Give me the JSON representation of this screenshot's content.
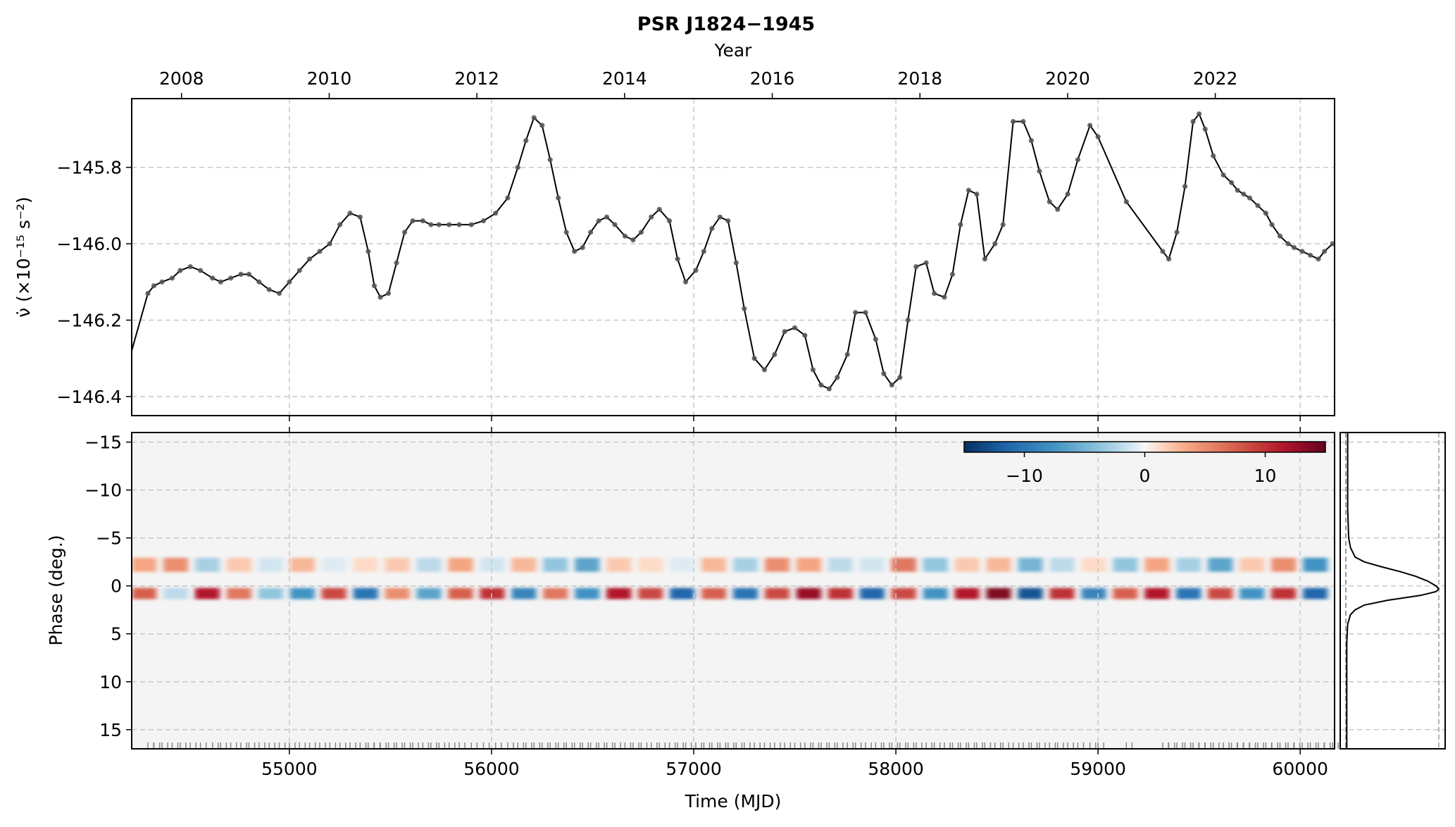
{
  "title": "PSR J1824−1945",
  "chart_data": [
    {
      "type": "line",
      "panel": "spin-down",
      "title": "PSR J1824−1945",
      "xlabel": "",
      "ylabel": "ν̇ (×10⁻¹⁵ s⁻²)",
      "top_axis_label": "Year",
      "top_axis_ticks": [
        "2008",
        "2010",
        "2012",
        "2014",
        "2016",
        "2018",
        "2020",
        "2022"
      ],
      "yticks": [
        "−145.8",
        "−146.0",
        "−146.2",
        "−146.4"
      ],
      "xlim": [
        54220,
        60170
      ],
      "ylim": [
        -146.45,
        -145.62
      ],
      "grid": true,
      "series": [
        {
          "x": [
            54220,
            54300,
            54330,
            54370,
            54420,
            54460,
            54510,
            54560,
            54620,
            54660,
            54710,
            54760,
            54800,
            54850,
            54900,
            54950,
            55000,
            55050,
            55100,
            55150,
            55200,
            55250,
            55300,
            55350,
            55390,
            55420,
            55450,
            55490,
            55530,
            55570,
            55610,
            55660,
            55700,
            55740,
            55790,
            55840,
            55900,
            55960,
            56020,
            56080,
            56130,
            56170,
            56210,
            56250,
            56290,
            56330,
            56370,
            56410,
            56450,
            56490,
            56530,
            56570,
            56610,
            56660,
            56700,
            56740,
            56790,
            56830,
            56880,
            56920,
            56960,
            57010,
            57050,
            57090,
            57130,
            57170,
            57210,
            57250,
            57300,
            57350,
            57400,
            57450,
            57500,
            57550,
            57590,
            57630,
            57670,
            57710,
            57760,
            57800,
            57850,
            57900,
            57940,
            57980,
            58020,
            58060,
            58100,
            58150,
            58190,
            58240,
            58280,
            58320,
            58360,
            58400,
            58440,
            58490,
            58530,
            58580,
            58630,
            58670,
            58710,
            58760,
            58800,
            58850,
            58900,
            58960,
            59000,
            59140,
            59320,
            59350,
            59390,
            59430,
            59470,
            59500,
            59530,
            59570,
            59620,
            59660,
            59690,
            59720,
            59750,
            59790,
            59830,
            59860,
            59900,
            59940,
            59970,
            60010,
            60050,
            60090,
            60120,
            60160
          ],
          "values": [
            -146.28,
            -146.13,
            -146.11,
            -146.1,
            -146.09,
            -146.07,
            -146.06,
            -146.07,
            -146.09,
            -146.1,
            -146.09,
            -146.08,
            -146.08,
            -146.1,
            -146.12,
            -146.13,
            -146.1,
            -146.07,
            -146.04,
            -146.02,
            -146.0,
            -145.95,
            -145.92,
            -145.93,
            -146.02,
            -146.11,
            -146.14,
            -146.13,
            -146.05,
            -145.97,
            -145.94,
            -145.94,
            -145.95,
            -145.95,
            -145.95,
            -145.95,
            -145.95,
            -145.94,
            -145.92,
            -145.88,
            -145.8,
            -145.73,
            -145.67,
            -145.69,
            -145.78,
            -145.88,
            -145.97,
            -146.02,
            -146.01,
            -145.97,
            -145.94,
            -145.93,
            -145.95,
            -145.98,
            -145.99,
            -145.97,
            -145.93,
            -145.91,
            -145.94,
            -146.04,
            -146.1,
            -146.07,
            -146.02,
            -145.96,
            -145.93,
            -145.94,
            -146.05,
            -146.17,
            -146.3,
            -146.33,
            -146.29,
            -146.23,
            -146.22,
            -146.24,
            -146.33,
            -146.37,
            -146.38,
            -146.35,
            -146.29,
            -146.18,
            -146.18,
            -146.25,
            -146.34,
            -146.37,
            -146.35,
            -146.2,
            -146.06,
            -146.05,
            -146.13,
            -146.14,
            -146.08,
            -145.95,
            -145.86,
            -145.87,
            -146.04,
            -146.0,
            -145.95,
            -145.68,
            -145.68,
            -145.73,
            -145.81,
            -145.89,
            -145.91,
            -145.87,
            -145.78,
            -145.69,
            -145.72,
            -145.89,
            -146.02,
            -146.04,
            -145.97,
            -145.85,
            -145.68,
            -145.66,
            -145.7,
            -145.77,
            -145.82,
            -145.84,
            -145.86,
            -145.87,
            -145.88,
            -145.9,
            -145.92,
            -145.95,
            -145.98,
            -146.0,
            -146.01,
            -146.02,
            -146.03,
            -146.04,
            -146.02,
            -146.0
          ]
        }
      ]
    },
    {
      "type": "heatmap",
      "panel": "profile-residuals",
      "xlabel": "Time (MJD)",
      "ylabel": "Phase (deg.)",
      "xticks": [
        "55000",
        "56000",
        "57000",
        "58000",
        "59000",
        "60000"
      ],
      "yticks": [
        "−15",
        "−10",
        "−5",
        "0",
        "5",
        "10",
        "15"
      ],
      "xlim": [
        54220,
        60170
      ],
      "ylim": [
        17,
        -16
      ],
      "grid": true,
      "colormap": "RdBu_r",
      "colorbar": {
        "ticks": [
          "−10",
          "0",
          "10"
        ],
        "range": [
          -15,
          15
        ],
        "placement": "top-right"
      },
      "bands": [
        {
          "phase": -2.2,
          "values": [
            6,
            7,
            -5,
            4,
            -3,
            5,
            -2,
            3,
            4,
            -4,
            6,
            -3,
            5,
            -6,
            -8,
            4,
            3,
            -2,
            5,
            -5,
            7,
            6,
            -4,
            -3,
            8,
            -6,
            4,
            5,
            -7,
            -4,
            3,
            -6,
            6,
            -5,
            -8,
            4,
            7,
            -9
          ]
        },
        {
          "phase": 0.8,
          "values": [
            9,
            -4,
            12,
            8,
            -6,
            -9,
            10,
            -11,
            7,
            -8,
            9,
            11,
            -10,
            8,
            -9,
            12,
            10,
            -12,
            9,
            -11,
            10,
            13,
            11,
            -12,
            10,
            -9,
            12,
            14,
            -13,
            11,
            -10,
            9,
            12,
            -11,
            10,
            -9,
            11,
            -12
          ]
        }
      ]
    },
    {
      "type": "line",
      "panel": "mean-profile",
      "ylim": [
        17,
        -16
      ],
      "grid": true,
      "x": [
        -16,
        -8,
        -5,
        -4,
        -3,
        -2.5,
        -2,
        -1.5,
        -1,
        -0.5,
        0,
        0.3,
        0.6,
        1,
        1.5,
        2,
        2.5,
        3,
        4,
        6,
        17
      ],
      "values": [
        0.02,
        0.02,
        0.03,
        0.05,
        0.1,
        0.2,
        0.38,
        0.58,
        0.75,
        0.88,
        0.97,
        1.0,
        0.97,
        0.8,
        0.45,
        0.2,
        0.1,
        0.05,
        0.02,
        0.01,
        0.01
      ]
    }
  ]
}
